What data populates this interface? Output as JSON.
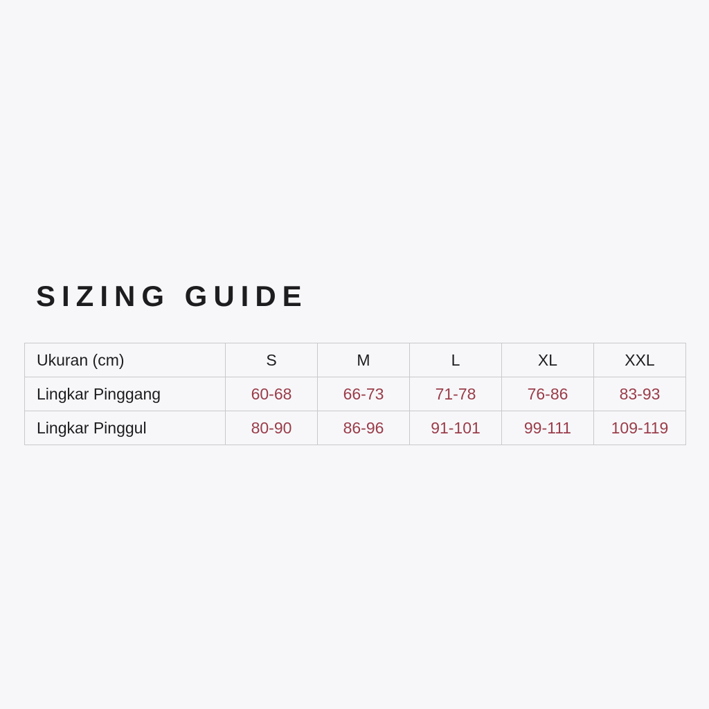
{
  "title": "SIZING GUIDE",
  "table": {
    "header": [
      "Ukuran (cm)",
      "S",
      "M",
      "L",
      "XL",
      "XXL"
    ],
    "rows": [
      [
        "Lingkar Pinggang",
        "60-68",
        "66-73",
        "71-78",
        "76-86",
        "83-93"
      ],
      [
        "Lingkar Pinggul",
        "80-90",
        "86-96",
        "91-101",
        "99-111",
        "109-119"
      ]
    ]
  },
  "colors": {
    "background": "#f7f7f9",
    "value_text": "#9a3c4a",
    "text": "#1d1c1e"
  }
}
